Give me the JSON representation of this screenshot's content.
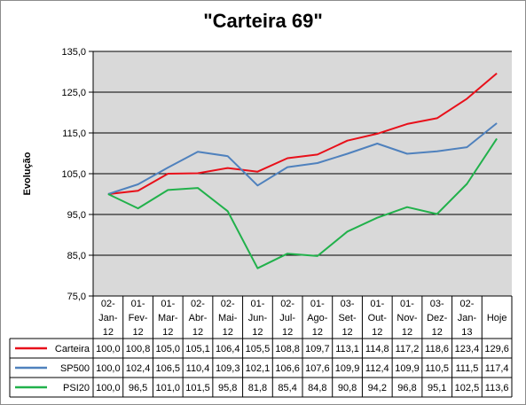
{
  "chart_data": {
    "type": "line",
    "title": "\"Carteira 69\"",
    "ylabel": "Evolução",
    "xlabel": "",
    "ylim": [
      75,
      135
    ],
    "yticks": [
      "75,0",
      "85,0",
      "95,0",
      "105,0",
      "115,0",
      "125,0",
      "135,0"
    ],
    "yticks_values": [
      75,
      85,
      95,
      105,
      115,
      125,
      135
    ],
    "grid": true,
    "legend": "data-table-left",
    "categories": [
      [
        "02-",
        "Jan-",
        "12"
      ],
      [
        "01-",
        "Fev-",
        "12"
      ],
      [
        "01-",
        "Mar-",
        "12"
      ],
      [
        "02-",
        "Abr-",
        "12"
      ],
      [
        "02-",
        "Mai-",
        "12"
      ],
      [
        "01-",
        "Jun-",
        "12"
      ],
      [
        "02-",
        "Jul-",
        "12"
      ],
      [
        "01-",
        "Ago-",
        "12"
      ],
      [
        "03-",
        "Set-",
        "12"
      ],
      [
        "01-",
        "Out-",
        "12"
      ],
      [
        "01-",
        "Nov-",
        "12"
      ],
      [
        "03-",
        "Dez-",
        "12"
      ],
      [
        "02-",
        "Jan-",
        "13"
      ],
      [
        "Hoje"
      ]
    ],
    "series": [
      {
        "name": "Carteira",
        "color": "#e8101a",
        "values": [
          100.0,
          100.8,
          105.0,
          105.1,
          106.4,
          105.5,
          108.8,
          109.7,
          113.1,
          114.8,
          117.2,
          118.6,
          123.4,
          129.6
        ],
        "labels": [
          "100,0",
          "100,8",
          "105,0",
          "105,1",
          "106,4",
          "105,5",
          "108,8",
          "109,7",
          "113,1",
          "114,8",
          "117,2",
          "118,6",
          "123,4",
          "129,6"
        ]
      },
      {
        "name": "SP500",
        "color": "#4f81bd",
        "values": [
          100.0,
          102.4,
          106.5,
          110.4,
          109.3,
          102.1,
          106.6,
          107.6,
          109.9,
          112.4,
          109.9,
          110.5,
          111.5,
          117.4
        ],
        "labels": [
          "100,0",
          "102,4",
          "106,5",
          "110,4",
          "109,3",
          "102,1",
          "106,6",
          "107,6",
          "109,9",
          "112,4",
          "109,9",
          "110,5",
          "111,5",
          "117,4"
        ]
      },
      {
        "name": "PSI20",
        "color": "#21b14b",
        "values": [
          100.0,
          96.5,
          101.0,
          101.5,
          95.8,
          81.8,
          85.4,
          84.8,
          90.8,
          94.2,
          96.8,
          95.1,
          102.5,
          113.6
        ],
        "labels": [
          "100,0",
          "96,5",
          "101,0",
          "101,5",
          "95,8",
          "81,8",
          "85,4",
          "84,8",
          "90,8",
          "94,2",
          "96,8",
          "95,1",
          "102,5",
          "113,6"
        ]
      }
    ],
    "colors": {
      "plot_background": "#d9d9d9",
      "gridline": "#000000",
      "border": "#808080"
    }
  }
}
